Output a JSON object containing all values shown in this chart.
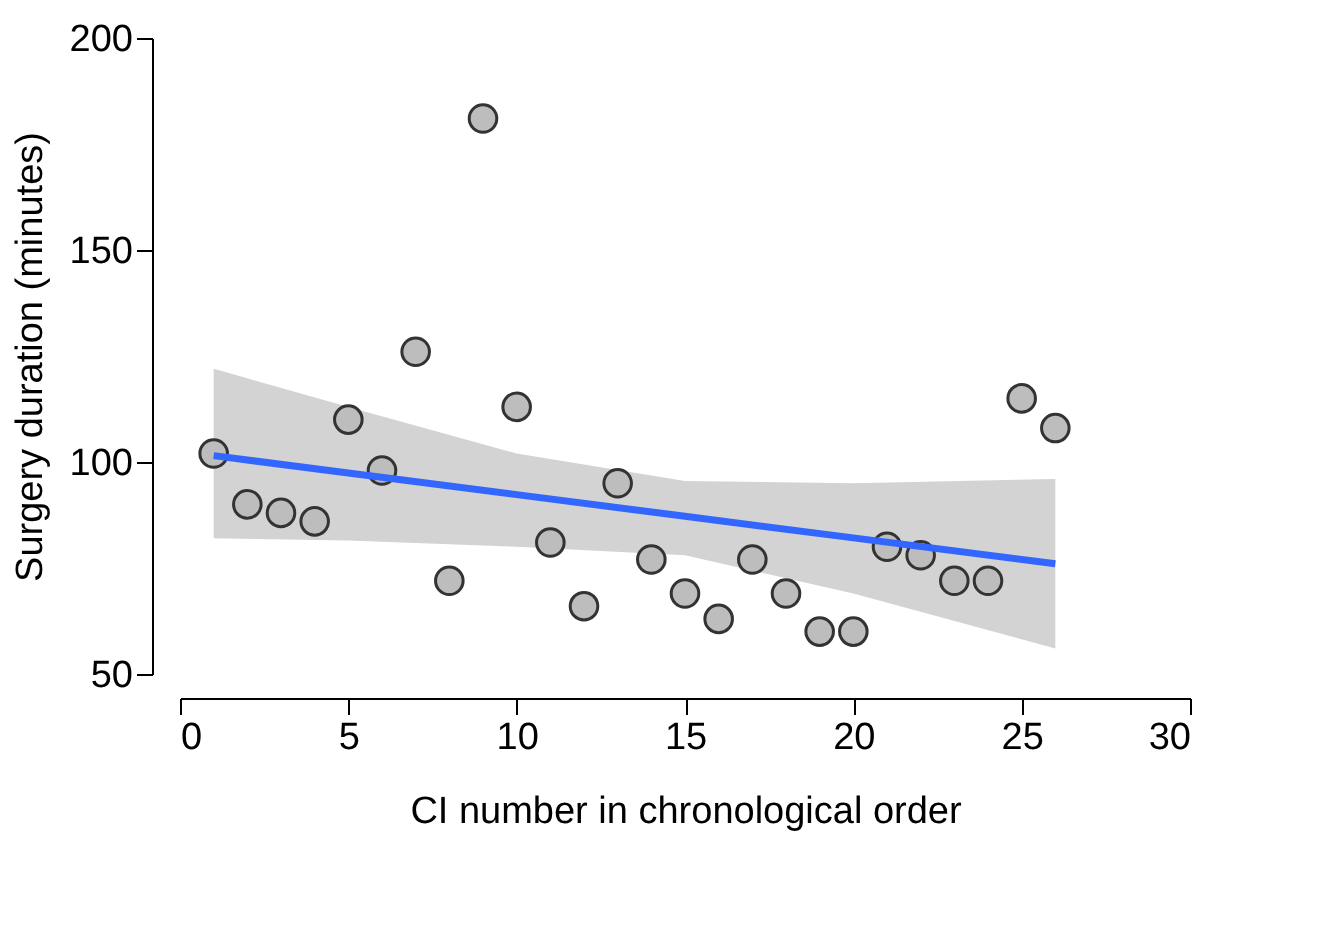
{
  "chart_data": {
    "type": "scatter",
    "xlabel": "CI number in chronological order",
    "ylabel": "Surgery duration (minutes)",
    "xlim": [
      0,
      30
    ],
    "xticks": [
      0,
      5,
      10,
      15,
      20,
      25,
      30
    ],
    "ylim": [
      50,
      200
    ],
    "yticks": [
      50,
      100,
      150,
      200
    ],
    "grid": false,
    "series": [
      {
        "marker": "circle",
        "color": "#bdbdbd",
        "x": [
          1,
          2,
          3,
          4,
          5,
          6,
          7,
          8,
          9,
          10,
          11,
          12,
          13,
          14,
          15,
          16,
          17,
          18,
          19,
          20,
          21,
          22,
          23,
          24,
          25,
          26
        ],
        "values": [
          102,
          90,
          88,
          86,
          110,
          98,
          126,
          72,
          181,
          113,
          81,
          66,
          95,
          77,
          69,
          63,
          77,
          69,
          60,
          60,
          80,
          78,
          72,
          72,
          115,
          108
        ]
      },
      {
        "type": "line",
        "color": "#3366ff",
        "x": [
          1,
          5,
          10,
          15,
          20,
          26
        ],
        "values": [
          101.5,
          97.4,
          92.3,
          87.2,
          82.1,
          76
        ],
        "lower": [
          82,
          81.5,
          80,
          78,
          69,
          56
        ],
        "upper": [
          122,
          113,
          102,
          95.5,
          95,
          96
        ]
      }
    ]
  }
}
